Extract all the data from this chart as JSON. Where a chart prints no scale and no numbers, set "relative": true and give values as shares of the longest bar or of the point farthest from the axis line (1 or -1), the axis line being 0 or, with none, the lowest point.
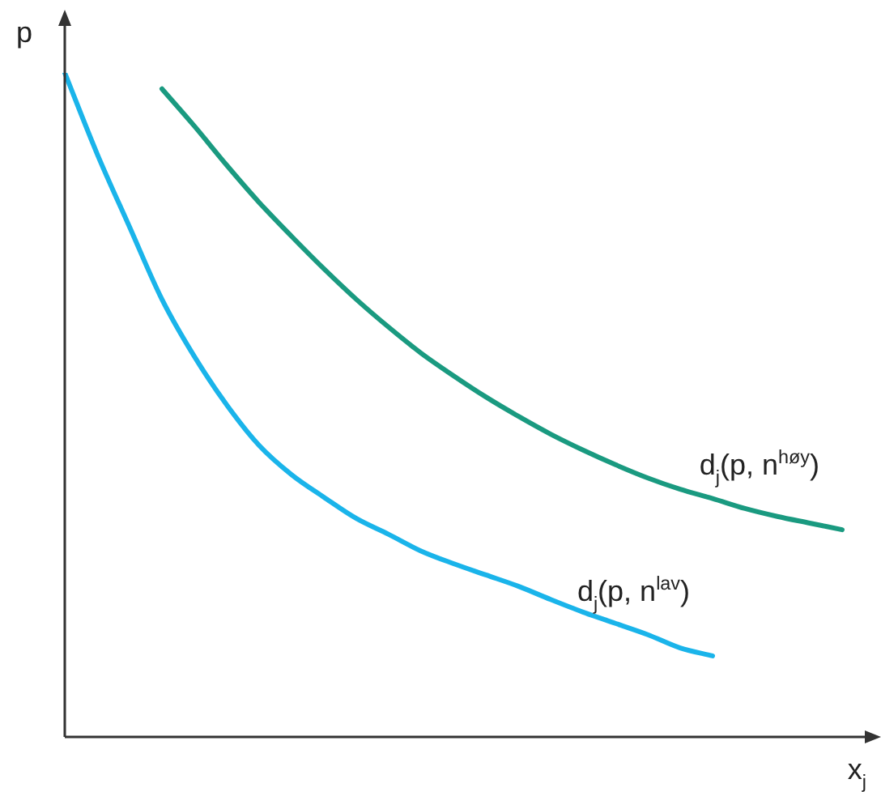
{
  "chart_data": {
    "type": "line",
    "relative": true,
    "xlabel": "x$_{j}$",
    "ylabel": "p",
    "legend": false,
    "marker": "none",
    "line_style": "solid",
    "grid": false,
    "categories": [
      null,
      null,
      null,
      null,
      null,
      null,
      null,
      null,
      null,
      null,
      null,
      null,
      null,
      null,
      null,
      null,
      null,
      null,
      null,
      null,
      null,
      null,
      null,
      null,
      null,
      null
    ],
    "series": [
      {
        "name": "d$_{j}$(p, n$^{høy}$)",
        "color": "#1a9a80",
        "values": [
          null,
          null,
          null,
          0.976,
          0.92,
          0.861,
          0.805,
          0.754,
          0.705,
          0.659,
          0.617,
          0.578,
          0.544,
          0.512,
          0.483,
          0.456,
          0.432,
          0.41,
          0.39,
          0.373,
          0.359,
          0.344,
          0.332,
          0.322,
          0.312,
          null
        ]
      },
      {
        "name": "d$_{j}$(p, n$^{lav}$)",
        "color": "#1ab4ea",
        "values": [
          1,
          0.878,
          0.768,
          0.659,
          0.573,
          0.5,
          0.439,
          0.395,
          0.361,
          0.329,
          0.305,
          0.28,
          0.261,
          0.244,
          0.227,
          0.207,
          0.188,
          0.171,
          0.154,
          0.134,
          0.122,
          null,
          null,
          null,
          null,
          null
        ]
      }
    ]
  }
}
